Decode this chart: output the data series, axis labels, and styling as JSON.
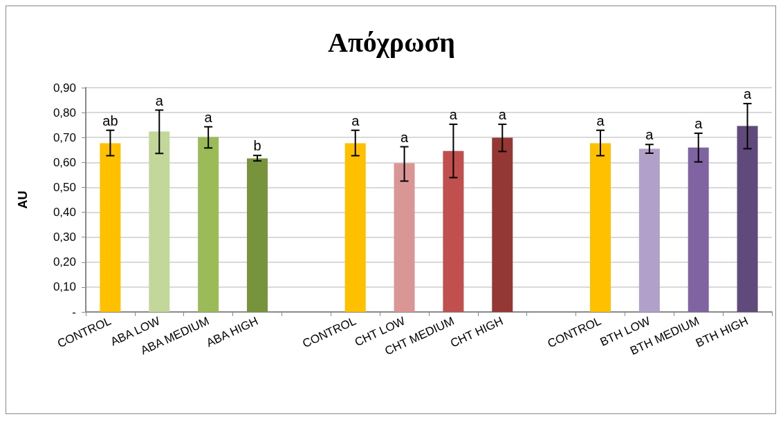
{
  "chart_data": {
    "type": "bar",
    "title": "Απόχρωση",
    "ylabel": "AU",
    "categories": [
      "CONTROL",
      "ABA LOW",
      "ABA MEDIUM",
      "ABA HIGH",
      null,
      "CONTROL",
      "CHT LOW",
      "CHT MEDIUM",
      "CHT HIGH",
      null,
      "CONTROL",
      "BTH LOW",
      "BTH MEDIUM",
      "BTH HIGH"
    ],
    "values": [
      0.677,
      0.724,
      0.702,
      0.616,
      null,
      0.677,
      0.597,
      0.646,
      0.699,
      null,
      0.677,
      0.655,
      0.66,
      0.746
    ],
    "colors": [
      "#ffc000",
      "#c4d79b",
      "#9bbb59",
      "#77933c",
      "#ffffff",
      "#ffc000",
      "#da9694",
      "#c0504d",
      "#953735",
      "#ffffff",
      "#ffc000",
      "#b1a0c7",
      "#8064a2",
      "#604a7b"
    ],
    "errors": [
      [
        0.627,
        0.729
      ],
      [
        0.636,
        0.81
      ],
      [
        0.658,
        0.743
      ],
      [
        0.606,
        0.628
      ],
      null,
      [
        0.627,
        0.729
      ],
      [
        0.525,
        0.663
      ],
      [
        0.539,
        0.753
      ],
      [
        0.644,
        0.753
      ],
      null,
      [
        0.627,
        0.729
      ],
      [
        0.637,
        0.672
      ],
      [
        0.602,
        0.717
      ],
      [
        0.655,
        0.836
      ]
    ],
    "value_labels": [
      "ab",
      "a",
      "a",
      "b",
      null,
      "a",
      "a",
      "a",
      "a",
      null,
      "a",
      "a",
      "a",
      "a"
    ],
    "ylim": [
      0,
      0.9
    ],
    "yticks": [
      {
        "value": 0,
        "label": "-"
      },
      {
        "value": 0.1,
        "label": "0,10"
      },
      {
        "value": 0.2,
        "label": "0,20"
      },
      {
        "value": 0.3,
        "label": "0,30"
      },
      {
        "value": 0.4,
        "label": "0,40"
      },
      {
        "value": 0.5,
        "label": "0,50"
      },
      {
        "value": 0.6,
        "label": "0,60"
      },
      {
        "value": 0.7,
        "label": "0,70"
      },
      {
        "value": 0.8,
        "label": "0,80"
      },
      {
        "value": 0.9,
        "label": "0,90"
      }
    ],
    "grid": "y"
  }
}
